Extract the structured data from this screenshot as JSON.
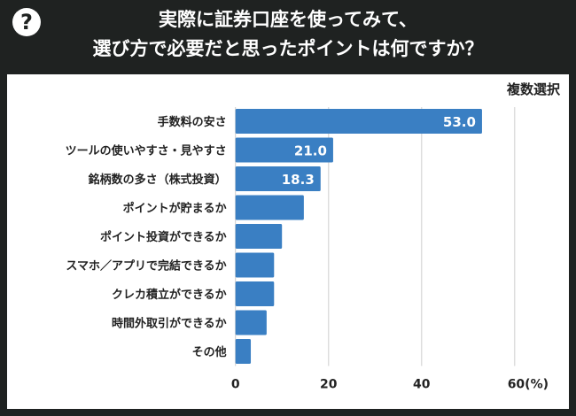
{
  "header": {
    "icon": "question-icon",
    "title_line1": "実際に証券口座を使ってみて、",
    "title_line2": "選び方で必要だと思ったポイントは何ですか？"
  },
  "note": "複数選択",
  "chart_data": {
    "type": "bar",
    "orientation": "horizontal",
    "categories": [
      "手数料の安さ",
      "ツールの使いやすさ・見やすさ",
      "銘柄数の多さ（株式投資）",
      "ポイントが貯まるか",
      "ポイント投資ができるか",
      "スマホ／アプリで完結できるか",
      "クレカ積立ができるか",
      "時間外取引ができるか",
      "その他"
    ],
    "values": [
      53.0,
      21.0,
      18.3,
      14.7,
      10.0,
      8.3,
      8.3,
      6.7,
      3.3
    ],
    "data_labels": [
      "53.0",
      "21.0",
      "18.3",
      null,
      null,
      null,
      null,
      null,
      null
    ],
    "xlim": [
      0,
      60
    ],
    "xticks": [
      0,
      20,
      40,
      60
    ],
    "xtick_labels": [
      "0",
      "20",
      "40",
      "60(%)"
    ],
    "grid": true,
    "bar_color": "#3a7fc3"
  }
}
